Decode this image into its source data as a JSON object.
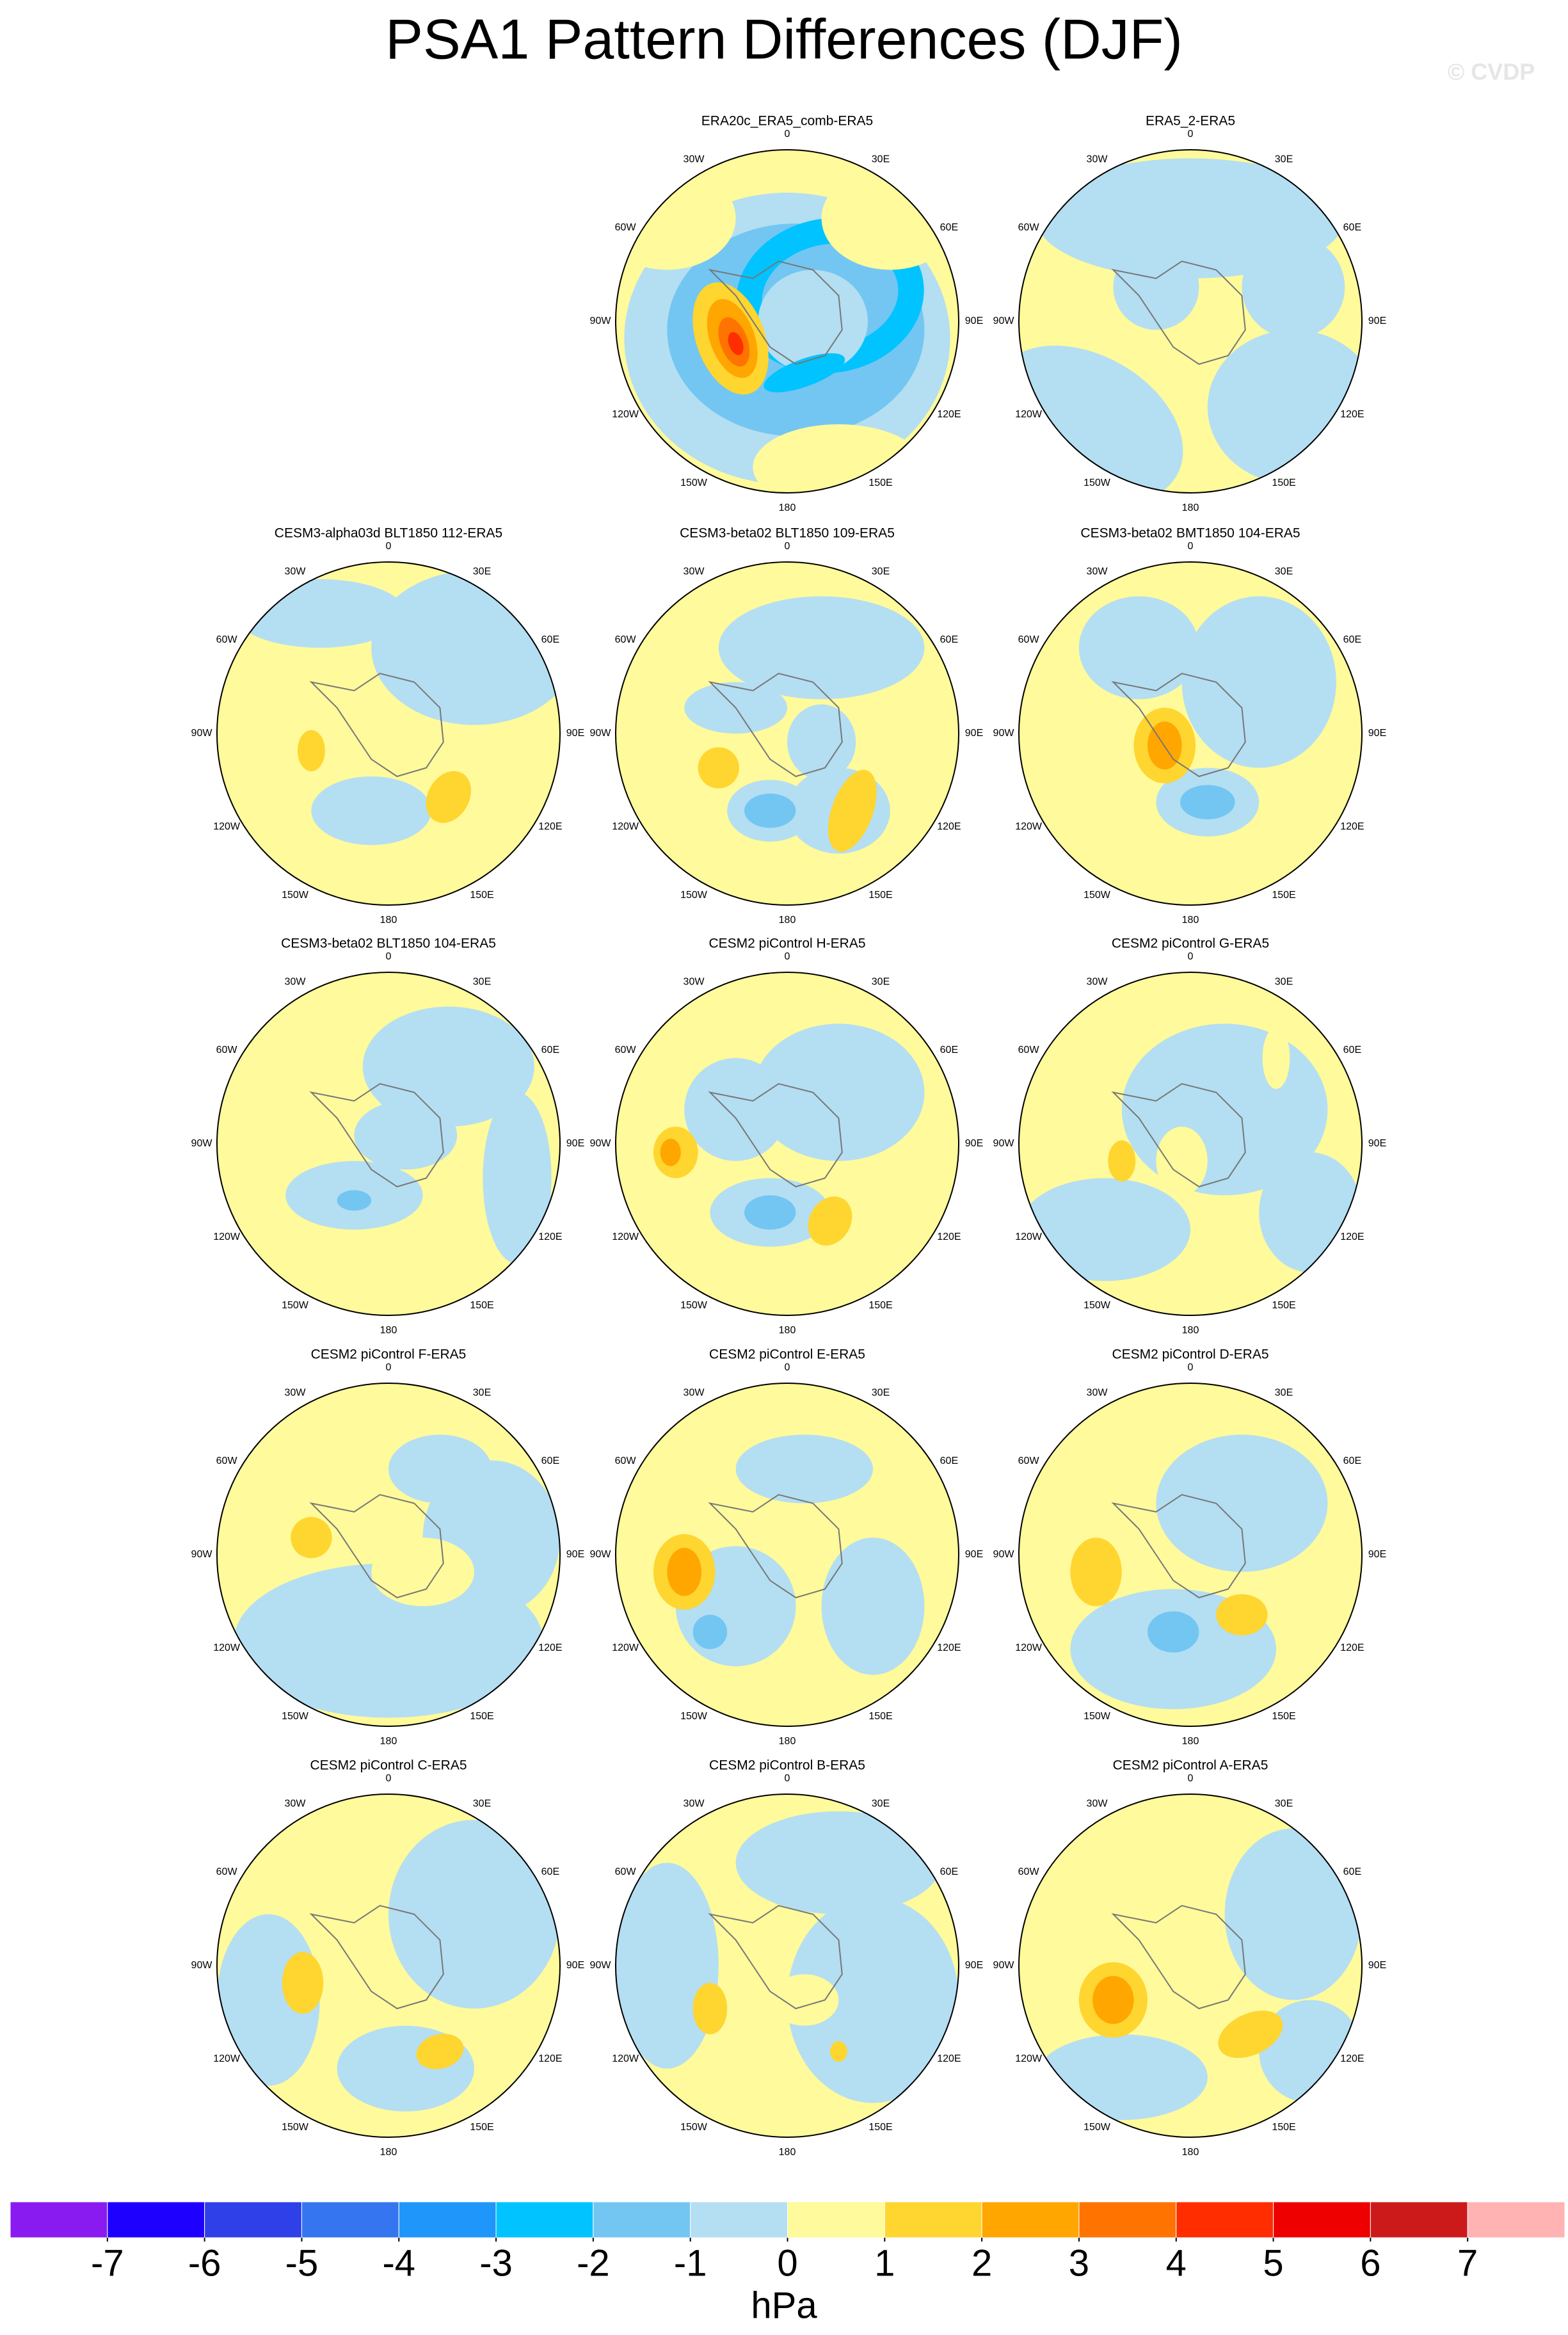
{
  "title": "PSA1 Pattern Differences (DJF)",
  "watermark": "© CVDP",
  "lon_labels": [
    "0",
    "30E",
    "60E",
    "90E",
    "120E",
    "150E",
    "180",
    "150W",
    "120W",
    "90W",
    "60W",
    "30W"
  ],
  "panels": [
    {
      "title": "ERA20c_ERA5_comb-ERA5"
    },
    {
      "title": "ERA5_2-ERA5"
    },
    {
      "title": "CESM3-alpha03d BLT1850 112-ERA5"
    },
    {
      "title": "CESM3-beta02 BLT1850 109-ERA5"
    },
    {
      "title": "CESM3-beta02 BMT1850 104-ERA5"
    },
    {
      "title": "CESM3-beta02 BLT1850 104-ERA5"
    },
    {
      "title": "CESM2 piControl H-ERA5"
    },
    {
      "title": "CESM2 piControl G-ERA5"
    },
    {
      "title": "CESM2 piControl F-ERA5"
    },
    {
      "title": "CESM2 piControl E-ERA5"
    },
    {
      "title": "CESM2 piControl D-ERA5"
    },
    {
      "title": "CESM2 piControl C-ERA5"
    },
    {
      "title": "CESM2 piControl B-ERA5"
    },
    {
      "title": "CESM2 piControl A-ERA5"
    }
  ],
  "colorbar": {
    "colors": [
      "#8a1bf0",
      "#1e00ff",
      "#3040e8",
      "#3575f0",
      "#1e96fa",
      "#00c3ff",
      "#73c6f2",
      "#b4def2",
      "#fffa9b",
      "#ffd530",
      "#ffa600",
      "#ff7300",
      "#ff2d00",
      "#ee0000",
      "#cc1a1a",
      "#ffb3b3"
    ],
    "ticks": [
      -7,
      -6,
      -5,
      -4,
      -3,
      -2,
      -1,
      0,
      1,
      2,
      3,
      4,
      5,
      6,
      7
    ],
    "unit": "hPa"
  }
}
